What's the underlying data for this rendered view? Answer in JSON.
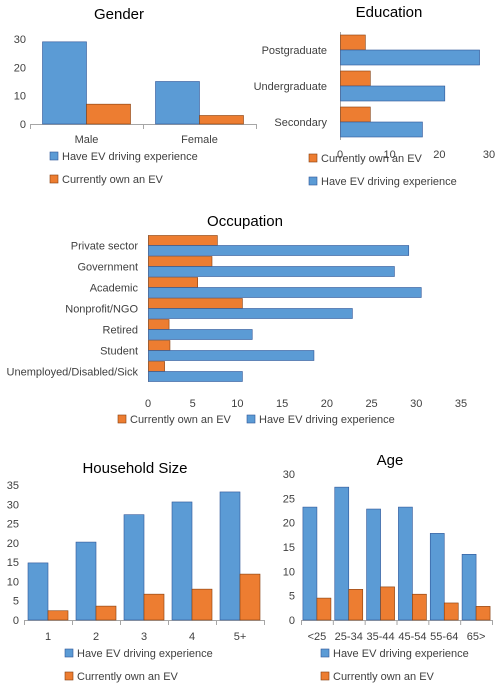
{
  "colors": {
    "ev_experience": "#5b9bd5",
    "own_ev": "#ed7d31",
    "bar_stroke": "#2f5597",
    "bar_stroke_orange": "#843c0c"
  },
  "chart_data": [
    {
      "id": "gender",
      "type": "bar",
      "orientation": "vertical",
      "title": "Gender",
      "categories": [
        "Male",
        "Female"
      ],
      "ylim": [
        0,
        30
      ],
      "yticks": [
        0,
        10,
        20,
        30
      ],
      "series": [
        {
          "name": "Have EV driving experience",
          "values": [
            29,
            15
          ]
        },
        {
          "name": "Currently own an EV",
          "values": [
            7,
            3
          ]
        }
      ],
      "legend": [
        "Have EV driving experience",
        "Currently own an EV"
      ],
      "legend_position": "bottom"
    },
    {
      "id": "education",
      "type": "bar",
      "orientation": "horizontal",
      "title": "Education",
      "categories": [
        "Postgraduate",
        "Undergraduate",
        "Secondary"
      ],
      "xlim": [
        0,
        30
      ],
      "xticks": [
        0,
        10,
        20,
        30
      ],
      "series": [
        {
          "name": "Currently own an EV",
          "values": [
            5,
            6,
            6
          ]
        },
        {
          "name": "Have EV driving experience",
          "values": [
            28,
            21,
            16.5
          ]
        }
      ],
      "legend": [
        "Currently own an EV",
        "Have EV driving experience"
      ],
      "legend_position": "bottom"
    },
    {
      "id": "occupation",
      "type": "bar",
      "orientation": "horizontal",
      "title": "Occupation",
      "categories": [
        "Private sector",
        "Government",
        "Academic",
        "Nonprofit/NGO",
        "Retired",
        "Student",
        "Unemployed/Disabled/Sick"
      ],
      "xlim": [
        0,
        35
      ],
      "xticks": [
        0,
        5,
        10,
        15,
        20,
        25,
        30,
        35
      ],
      "series": [
        {
          "name": "Currently own an EV",
          "values": [
            7.7,
            7.1,
            5.5,
            10.5,
            2.3,
            2.4,
            1.8
          ]
        },
        {
          "name": "Have EV driving experience",
          "values": [
            29.1,
            27.5,
            30.5,
            22.8,
            11.6,
            18.5,
            10.5
          ]
        }
      ],
      "legend": [
        "Currently own an EV",
        "Have EV driving experience"
      ],
      "legend_position": "bottom"
    },
    {
      "id": "household",
      "type": "bar",
      "orientation": "vertical",
      "title": "Household Size",
      "categories": [
        "1",
        "2",
        "3",
        "4",
        "5+"
      ],
      "ylim": [
        0,
        35
      ],
      "yticks": [
        0,
        5,
        10,
        15,
        20,
        25,
        30,
        35
      ],
      "series": [
        {
          "name": "Have EV driving experience",
          "values": [
            14.8,
            20.2,
            27.3,
            30.6,
            33.2
          ]
        },
        {
          "name": "Currently own an EV",
          "values": [
            2.4,
            3.6,
            6.7,
            8,
            11.9
          ]
        }
      ],
      "legend": [
        "Have EV driving experience",
        "Currently own an EV"
      ],
      "legend_position": "bottom"
    },
    {
      "id": "age",
      "type": "bar",
      "orientation": "vertical",
      "title": "Age",
      "categories": [
        "<25",
        "25-34",
        "35-44",
        "45-54",
        "55-64",
        "65>"
      ],
      "ylim": [
        0,
        30
      ],
      "yticks": [
        0,
        5,
        10,
        15,
        20,
        25,
        30
      ],
      "series": [
        {
          "name": "Have EV driving experience",
          "values": [
            23.2,
            27.3,
            22.8,
            23.2,
            17.8,
            13.5
          ]
        },
        {
          "name": "Currently own an EV",
          "values": [
            4.5,
            6.3,
            6.8,
            5.3,
            3.5,
            2.8
          ]
        }
      ],
      "legend": [
        "Have EV driving experience",
        "Currently own an EV"
      ],
      "legend_position": "bottom"
    }
  ]
}
